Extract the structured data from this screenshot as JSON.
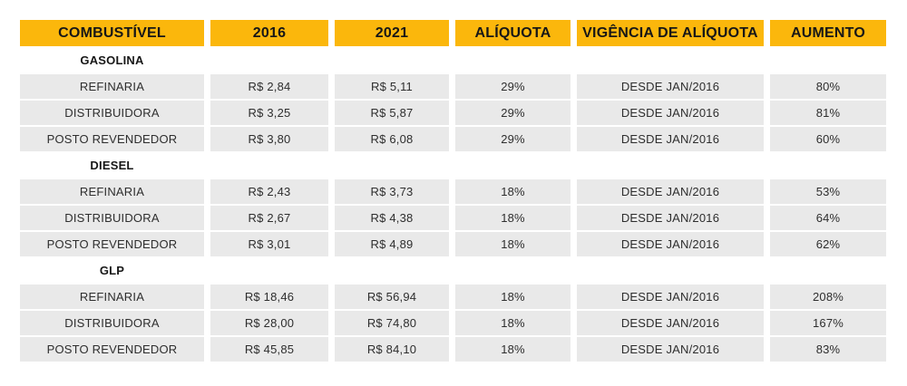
{
  "table": {
    "headers": [
      "COMBUSTÍVEL",
      "2016",
      "2021",
      "ALÍQUOTA",
      "VIGÊNCIA DE ALÍQUOTA",
      "AUMENTO"
    ],
    "sections": [
      {
        "label": "GASOLINA",
        "rows": [
          [
            "REFINARIA",
            "R$ 2,84",
            "R$ 5,11",
            "29%",
            "DESDE JAN/2016",
            "80%"
          ],
          [
            "DISTRIBUIDORA",
            "R$ 3,25",
            "R$ 5,87",
            "29%",
            "DESDE JAN/2016",
            "81%"
          ],
          [
            "POSTO REVENDEDOR",
            "R$ 3,80",
            "R$ 6,08",
            "29%",
            "DESDE JAN/2016",
            "60%"
          ]
        ]
      },
      {
        "label": "DIESEL",
        "rows": [
          [
            "REFINARIA",
            "R$ 2,43",
            "R$ 3,73",
            "18%",
            "DESDE JAN/2016",
            "53%"
          ],
          [
            "DISTRIBUIDORA",
            "R$ 2,67",
            "R$ 4,38",
            "18%",
            "DESDE JAN/2016",
            "64%"
          ],
          [
            "POSTO REVENDEDOR",
            "R$ 3,01",
            "R$ 4,89",
            "18%",
            "DESDE JAN/2016",
            "62%"
          ]
        ]
      },
      {
        "label": "GLP",
        "rows": [
          [
            "REFINARIA",
            "R$ 18,46",
            "R$ 56,94",
            "18%",
            "DESDE JAN/2016",
            "208%"
          ],
          [
            "DISTRIBUIDORA",
            "R$ 28,00",
            "R$ 74,80",
            "18%",
            "DESDE JAN/2016",
            "167%"
          ],
          [
            "POSTO REVENDEDOR",
            "R$ 45,85",
            "R$ 84,10",
            "18%",
            "DESDE JAN/2016",
            "83%"
          ]
        ]
      }
    ],
    "colors": {
      "header_bg": "#FBB70C",
      "header_text": "#171717",
      "row_bg": "#E9E9E9",
      "cell_text": "#2E2E2E",
      "section_text": "#171717"
    }
  },
  "chart_data": {
    "type": "table",
    "title": "",
    "columns": [
      "COMBUSTÍVEL",
      "2016",
      "2021",
      "ALÍQUOTA",
      "VIGÊNCIA DE ALÍQUOTA",
      "AUMENTO"
    ],
    "groups": [
      {
        "name": "GASOLINA",
        "rows": [
          {
            "combustivel": "REFINARIA",
            "preco_2016_brl": 2.84,
            "preco_2021_brl": 5.11,
            "aliquota_pct": 29,
            "vigencia": "DESDE JAN/2016",
            "aumento_pct": 80
          },
          {
            "combustivel": "DISTRIBUIDORA",
            "preco_2016_brl": 3.25,
            "preco_2021_brl": 5.87,
            "aliquota_pct": 29,
            "vigencia": "DESDE JAN/2016",
            "aumento_pct": 81
          },
          {
            "combustivel": "POSTO REVENDEDOR",
            "preco_2016_brl": 3.8,
            "preco_2021_brl": 6.08,
            "aliquota_pct": 29,
            "vigencia": "DESDE JAN/2016",
            "aumento_pct": 60
          }
        ]
      },
      {
        "name": "DIESEL",
        "rows": [
          {
            "combustivel": "REFINARIA",
            "preco_2016_brl": 2.43,
            "preco_2021_brl": 3.73,
            "aliquota_pct": 18,
            "vigencia": "DESDE JAN/2016",
            "aumento_pct": 53
          },
          {
            "combustivel": "DISTRIBUIDORA",
            "preco_2016_brl": 2.67,
            "preco_2021_brl": 4.38,
            "aliquota_pct": 18,
            "vigencia": "DESDE JAN/2016",
            "aumento_pct": 64
          },
          {
            "combustivel": "POSTO REVENDEDOR",
            "preco_2016_brl": 3.01,
            "preco_2021_brl": 4.89,
            "aliquota_pct": 18,
            "vigencia": "DESDE JAN/2016",
            "aumento_pct": 62
          }
        ]
      },
      {
        "name": "GLP",
        "rows": [
          {
            "combustivel": "REFINARIA",
            "preco_2016_brl": 18.46,
            "preco_2021_brl": 56.94,
            "aliquota_pct": 18,
            "vigencia": "DESDE JAN/2016",
            "aumento_pct": 208
          },
          {
            "combustivel": "DISTRIBUIDORA",
            "preco_2016_brl": 28.0,
            "preco_2021_brl": 74.8,
            "aliquota_pct": 18,
            "vigencia": "DESDE JAN/2016",
            "aumento_pct": 167
          },
          {
            "combustivel": "POSTO REVENDEDOR",
            "preco_2016_brl": 45.85,
            "preco_2021_brl": 84.1,
            "aliquota_pct": 18,
            "vigencia": "DESDE JAN/2016",
            "aumento_pct": 83
          }
        ]
      }
    ]
  }
}
